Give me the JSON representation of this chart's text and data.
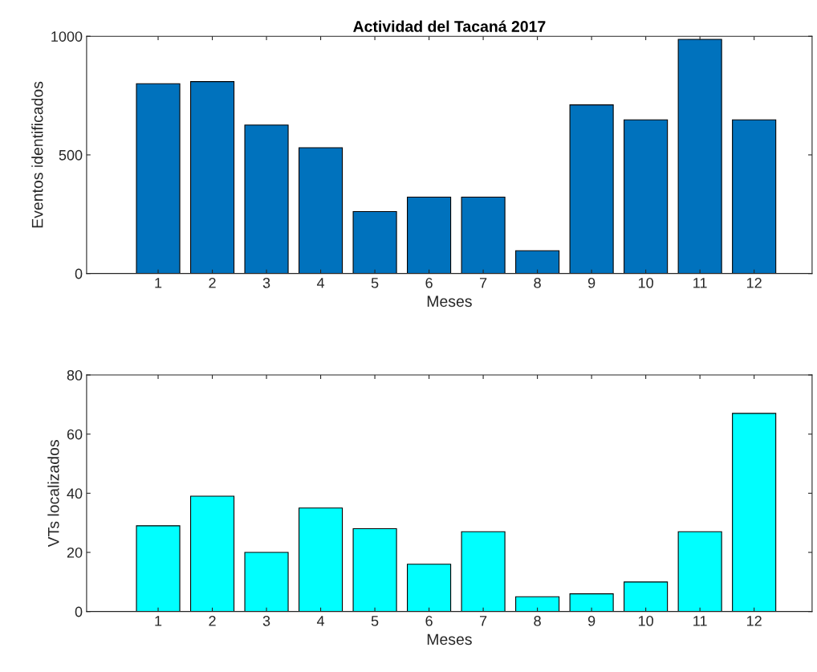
{
  "chart_data": [
    {
      "type": "bar",
      "title": "Actividad del Tacaná 2017",
      "xlabel": "Meses",
      "ylabel": "Eventos identificados",
      "categories": [
        "1",
        "2",
        "3",
        "4",
        "5",
        "6",
        "7",
        "8",
        "9",
        "10",
        "11",
        "12"
      ],
      "values": [
        800,
        809,
        626,
        530,
        261,
        322,
        322,
        96,
        711,
        648,
        987,
        648
      ],
      "color": "#0072bd",
      "ylim": [
        0,
        1000
      ],
      "yticks": [
        0,
        500,
        1000
      ],
      "grid": false,
      "legend": false
    },
    {
      "type": "bar",
      "xlabel": "Meses",
      "ylabel": "VTs localizados",
      "categories": [
        "1",
        "2",
        "3",
        "4",
        "5",
        "6",
        "7",
        "8",
        "9",
        "10",
        "11",
        "12"
      ],
      "values": [
        29,
        39,
        20,
        35,
        28,
        16,
        27,
        5,
        6,
        10,
        27,
        67
      ],
      "color": "#00ffff",
      "ylim": [
        0,
        80
      ],
      "yticks": [
        0,
        20,
        40,
        60,
        80
      ],
      "grid": false,
      "legend": false
    }
  ]
}
